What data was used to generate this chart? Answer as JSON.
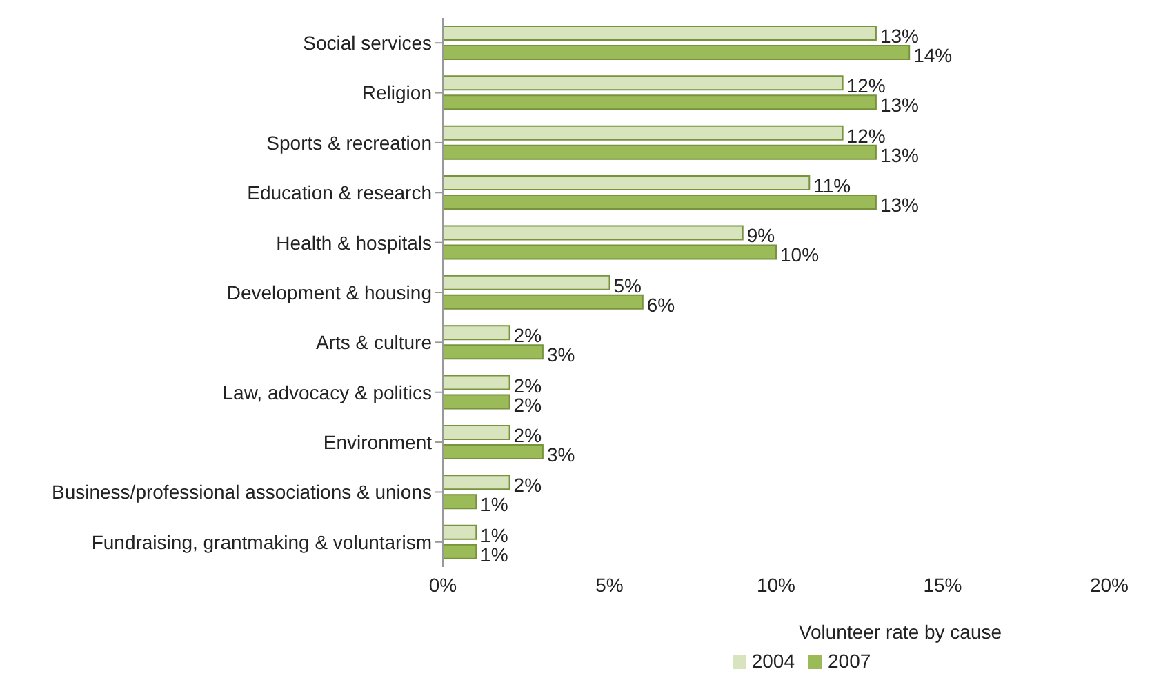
{
  "chart_data": {
    "type": "bar",
    "orientation": "horizontal",
    "xlabel": "Volunteer rate by cause",
    "categories": [
      "Social services",
      "Religion",
      "Sports & recreation",
      "Education & research",
      "Health & hospitals",
      "Development & housing",
      "Arts & culture",
      "Law, advocacy & politics",
      "Environment",
      "Business/professional associations & unions",
      "Fundraising, grantmaking & voluntarism"
    ],
    "series": [
      {
        "name": "2004",
        "color": "#d7e4bd",
        "values": [
          13,
          12,
          12,
          11,
          9,
          5,
          2,
          2,
          2,
          2,
          1
        ],
        "value_labels": [
          "13%",
          "12%",
          "12%",
          "11%",
          "9%",
          "5%",
          "2%",
          "2%",
          "2%",
          "2%",
          "1%"
        ]
      },
      {
        "name": "2007",
        "color": "#9bbb59",
        "values": [
          14,
          13,
          13,
          13,
          10,
          6,
          3,
          2,
          3,
          1,
          1
        ],
        "value_labels": [
          "14%",
          "13%",
          "13%",
          "13%",
          "10%",
          "6%",
          "3%",
          "2%",
          "3%",
          "1%",
          "1%"
        ]
      }
    ],
    "xlim": [
      0,
      20
    ],
    "xticks": [
      {
        "value": 0,
        "label": "0%"
      },
      {
        "value": 5,
        "label": "5%"
      },
      {
        "value": 10,
        "label": "10%"
      },
      {
        "value": 15,
        "label": "15%"
      },
      {
        "value": 20,
        "label": "20%"
      }
    ],
    "grid": false,
    "legend": "bottom"
  }
}
